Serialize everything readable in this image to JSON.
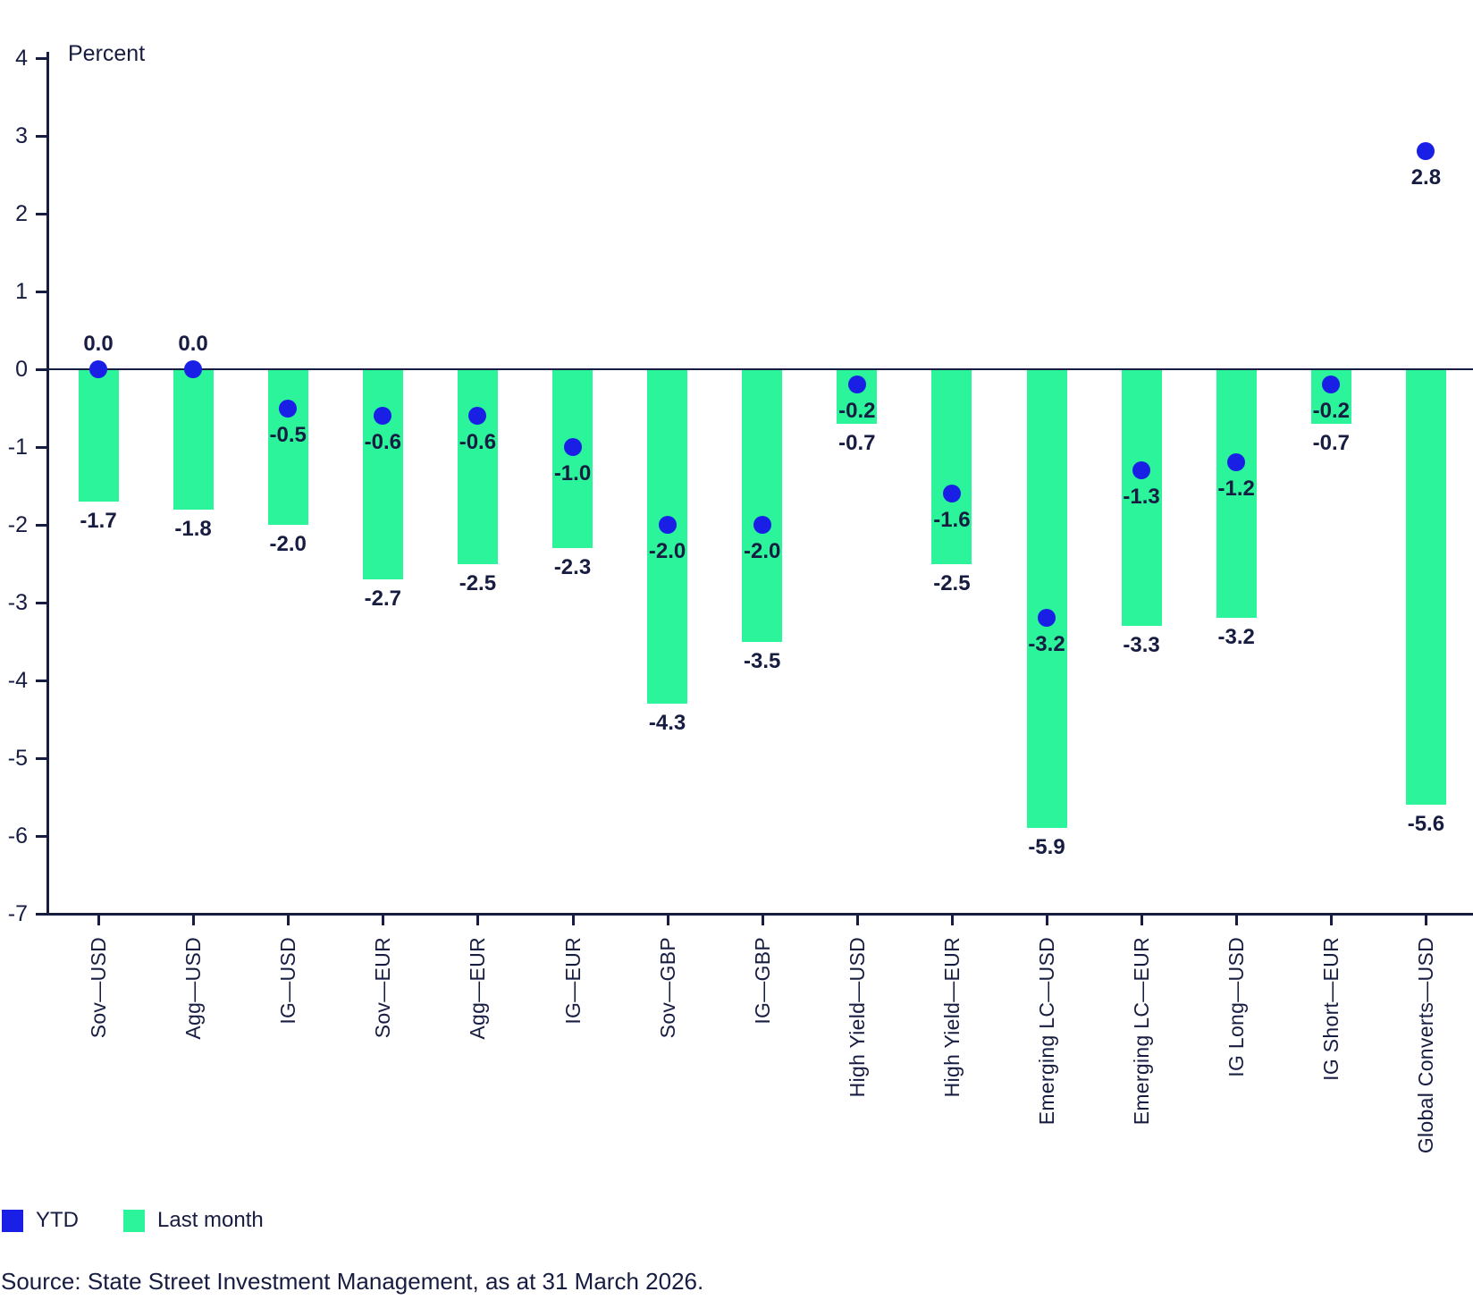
{
  "axis_title": "Percent",
  "source": "Source: State Street Investment Management, as at 31 March 2026.",
  "colors": {
    "navy_text_axis": "#171c41",
    "ytd_blue": "#1a1fe6",
    "last_month_green": "#2bf49b"
  },
  "legend": {
    "items": [
      {
        "label": "YTD",
        "color": "#1a1fe6"
      },
      {
        "label": "Last month",
        "color": "#2bf49b"
      }
    ]
  },
  "chart_data": {
    "type": "bar",
    "subtype": "bar-with-scatter-overlay",
    "title": "",
    "xlabel": "",
    "ylabel": "Percent",
    "ylim": [
      -7,
      4
    ],
    "yticks": [
      4,
      3,
      2,
      1,
      0,
      -1,
      -2,
      -3,
      -4,
      -5,
      -6,
      -7
    ],
    "grid": false,
    "legend_position": "bottom-left",
    "value_labels": true,
    "value_label_format": "0.1f",
    "categories": [
      "Sov—USD",
      "Agg—USD",
      "IG—USD",
      "Sov—EUR",
      "Agg—EUR",
      "IG—EUR",
      "Sov—GBP",
      "IG—GBP",
      "High Yield—USD",
      "High Yield—EUR",
      "Emerging LC—USD",
      "Emerging LC—EUR",
      "IG Long—USD",
      "IG Short—EUR",
      "Global Converts—USD"
    ],
    "series": [
      {
        "name": "Last month",
        "render": "bar",
        "color": "#2bf49b",
        "values": [
          -1.7,
          -1.8,
          -2.0,
          -2.7,
          -2.5,
          -2.3,
          -4.3,
          -3.5,
          -0.7,
          -2.5,
          -5.9,
          -3.3,
          -3.2,
          -0.7,
          -5.6
        ]
      },
      {
        "name": "YTD",
        "render": "scatter",
        "color": "#1a1fe6",
        "values": [
          0.0,
          0.0,
          -0.5,
          -0.6,
          -0.6,
          -1.0,
          -2.0,
          -2.0,
          -0.2,
          -1.6,
          -3.2,
          -1.3,
          -1.2,
          -0.2,
          2.8
        ]
      }
    ]
  }
}
